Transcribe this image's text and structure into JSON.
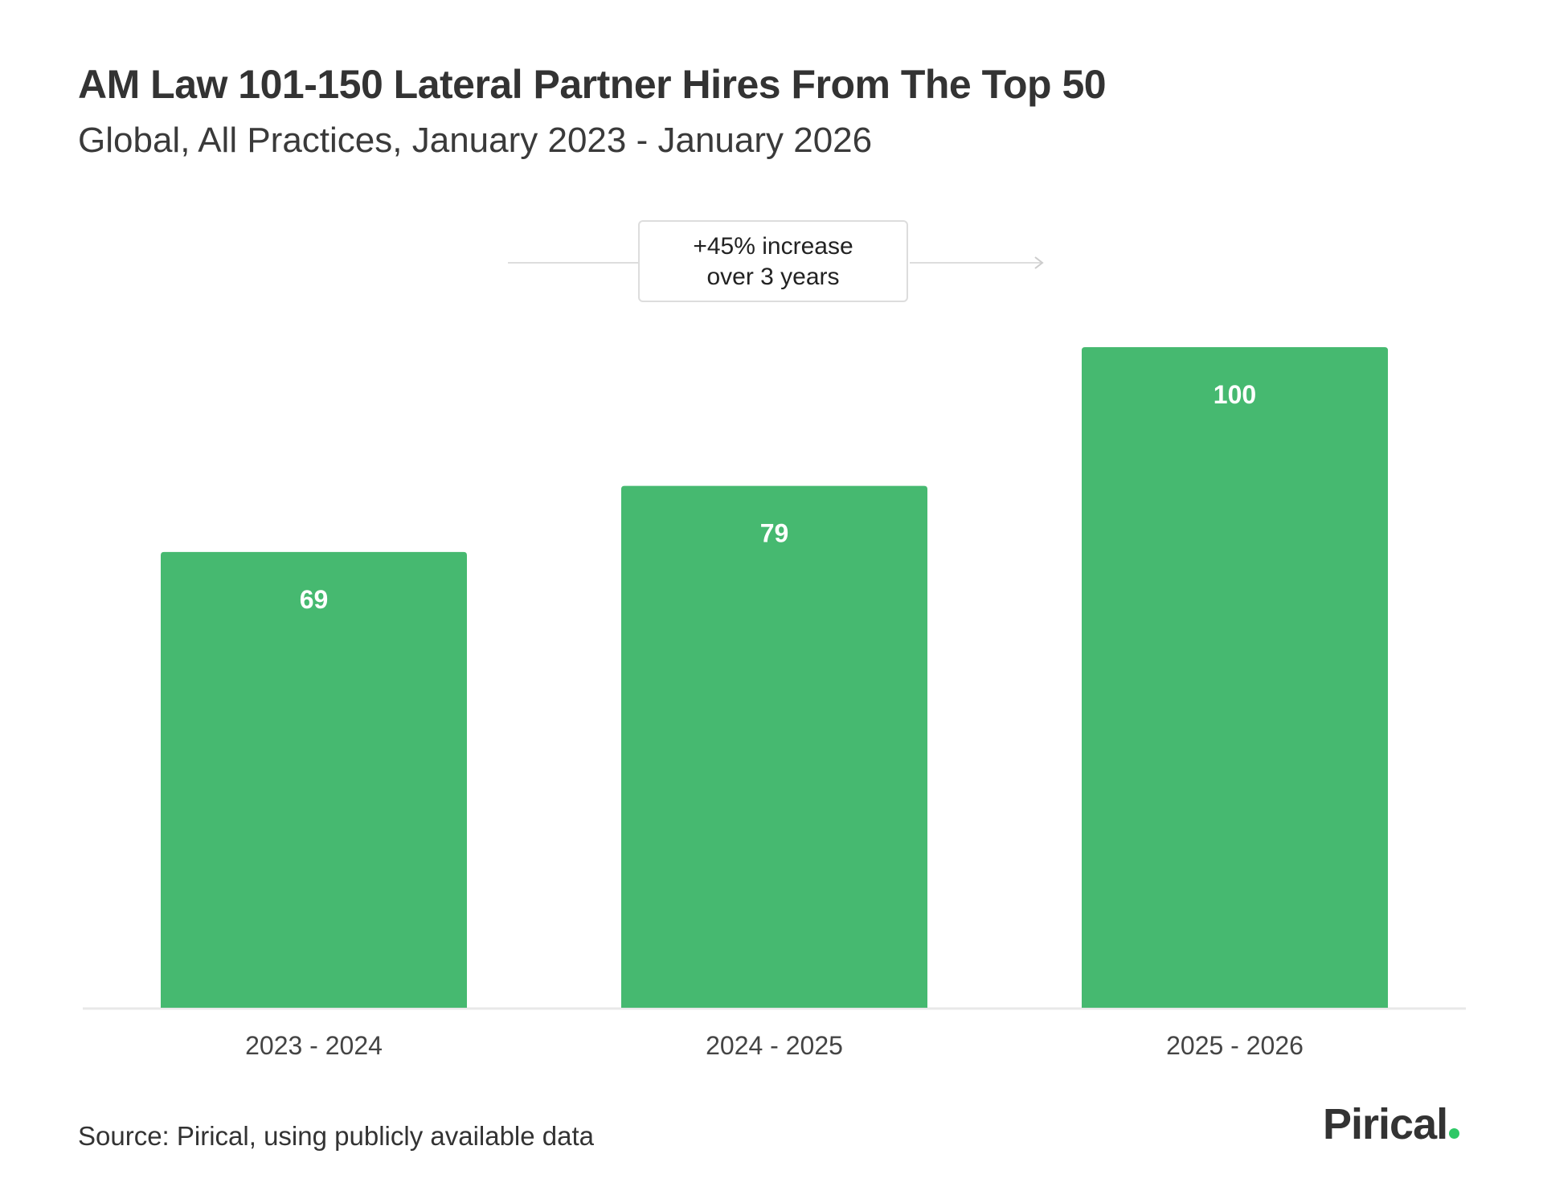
{
  "chart_data": {
    "type": "bar",
    "title": "AM Law 101-150 Lateral Partner Hires From The Top 50",
    "subtitle": "Global, All Practices, January 2023 - January 2026",
    "categories": [
      "2023 - 2024",
      "2024 - 2025",
      "2025 - 2026"
    ],
    "values": [
      69,
      79,
      100
    ],
    "value_labels": [
      "69",
      "79",
      "100"
    ],
    "xlabel": "",
    "ylabel": "",
    "ylim": [
      0,
      100
    ],
    "grid": false,
    "annotation": {
      "line1": "+45% increase",
      "line2": "over 3 years"
    },
    "bar_color": "#46b970"
  },
  "footer": {
    "source": "Source: Pirical, using publicly available data",
    "logo": "Pirical",
    "logo_dot_color": "#2ec866"
  }
}
